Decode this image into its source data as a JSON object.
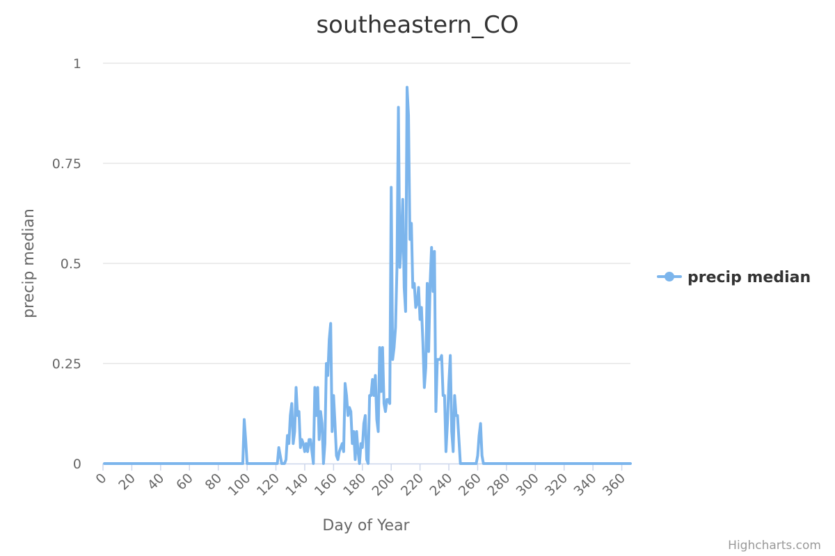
{
  "chart_data": {
    "type": "line",
    "title": "southeastern_CO",
    "xlabel": "Day of Year",
    "ylabel": "precip median",
    "xlim": [
      0,
      366
    ],
    "ylim": [
      0,
      1
    ],
    "x_ticks": [
      "0",
      "20",
      "40",
      "60",
      "80",
      "100",
      "120",
      "140",
      "160",
      "180",
      "200",
      "220",
      "240",
      "260",
      "280",
      "300",
      "320",
      "340",
      "360"
    ],
    "y_ticks": [
      "0",
      "0.25",
      "0.5",
      "0.75",
      "1"
    ],
    "grid": "horizontal",
    "legend_position": "right",
    "series": [
      {
        "name": "precip median",
        "color": "#7cb5ec",
        "x_start": 1,
        "values": [
          0,
          0,
          0,
          0,
          0,
          0,
          0,
          0,
          0,
          0,
          0,
          0,
          0,
          0,
          0,
          0,
          0,
          0,
          0,
          0,
          0,
          0,
          0,
          0,
          0,
          0,
          0,
          0,
          0,
          0,
          0,
          0,
          0,
          0,
          0,
          0,
          0,
          0,
          0,
          0,
          0,
          0,
          0,
          0,
          0,
          0,
          0,
          0,
          0,
          0,
          0,
          0,
          0,
          0,
          0,
          0,
          0,
          0,
          0,
          0,
          0,
          0,
          0,
          0,
          0,
          0,
          0,
          0,
          0,
          0,
          0,
          0,
          0,
          0,
          0,
          0,
          0,
          0,
          0,
          0,
          0,
          0,
          0,
          0,
          0,
          0,
          0,
          0,
          0,
          0,
          0,
          0,
          0,
          0,
          0,
          0,
          0,
          0.11,
          0.06,
          0,
          0,
          0,
          0,
          0,
          0,
          0,
          0,
          0,
          0,
          0,
          0,
          0,
          0,
          0,
          0,
          0,
          0,
          0,
          0,
          0,
          0,
          0.04,
          0.02,
          0,
          0,
          0,
          0.01,
          0.07,
          0.05,
          0.12,
          0.15,
          0.05,
          0.08,
          0.19,
          0.12,
          0.13,
          0.04,
          0.06,
          0.05,
          0.03,
          0.05,
          0.03,
          0.06,
          0.06,
          0.03,
          0,
          0.19,
          0.12,
          0.19,
          0.06,
          0.13,
          0.1,
          0,
          0.05,
          0.25,
          0.22,
          0.31,
          0.35,
          0.08,
          0.17,
          0.1,
          0.02,
          0.01,
          0.03,
          0.04,
          0.05,
          0.03,
          0.2,
          0.17,
          0.12,
          0.14,
          0.13,
          0.05,
          0.08,
          0.01,
          0.08,
          0.03,
          0,
          0.05,
          0.04,
          0.1,
          0.12,
          0.01,
          0,
          0.17,
          0.17,
          0.21,
          0.17,
          0.22,
          0.11,
          0.08,
          0.29,
          0.18,
          0.29,
          0.15,
          0.13,
          0.16,
          0.16,
          0.15,
          0.69,
          0.26,
          0.29,
          0.34,
          0.49,
          0.89,
          0.49,
          0.55,
          0.66,
          0.44,
          0.38,
          0.94,
          0.87,
          0.56,
          0.6,
          0.44,
          0.45,
          0.39,
          0.4,
          0.44,
          0.36,
          0.39,
          0.3,
          0.19,
          0.24,
          0.45,
          0.28,
          0.45,
          0.54,
          0.43,
          0.53,
          0.13,
          0.26,
          0.26,
          0.26,
          0.27,
          0.17,
          0.17,
          0.03,
          0.1,
          0.2,
          0.27,
          0.08,
          0.03,
          0.17,
          0.12,
          0.12,
          0.06,
          0,
          0,
          0,
          0,
          0,
          0,
          0,
          0,
          0,
          0,
          0,
          0,
          0.02,
          0.07,
          0.1,
          0.02,
          0,
          0,
          0,
          0,
          0,
          0,
          0,
          0,
          0,
          0,
          0,
          0,
          0,
          0,
          0,
          0,
          0,
          0,
          0,
          0,
          0,
          0,
          0,
          0,
          0,
          0,
          0,
          0,
          0,
          0,
          0,
          0,
          0,
          0,
          0,
          0,
          0,
          0,
          0,
          0,
          0,
          0,
          0,
          0,
          0,
          0,
          0,
          0,
          0,
          0,
          0,
          0,
          0,
          0,
          0,
          0,
          0,
          0,
          0,
          0,
          0,
          0,
          0,
          0,
          0,
          0,
          0,
          0,
          0,
          0,
          0,
          0,
          0,
          0,
          0,
          0,
          0,
          0,
          0,
          0,
          0,
          0,
          0,
          0,
          0,
          0,
          0,
          0,
          0,
          0,
          0,
          0,
          0,
          0,
          0,
          0,
          0,
          0,
          0,
          0,
          0,
          0,
          0
        ]
      }
    ]
  },
  "credits": "Highcharts.com"
}
